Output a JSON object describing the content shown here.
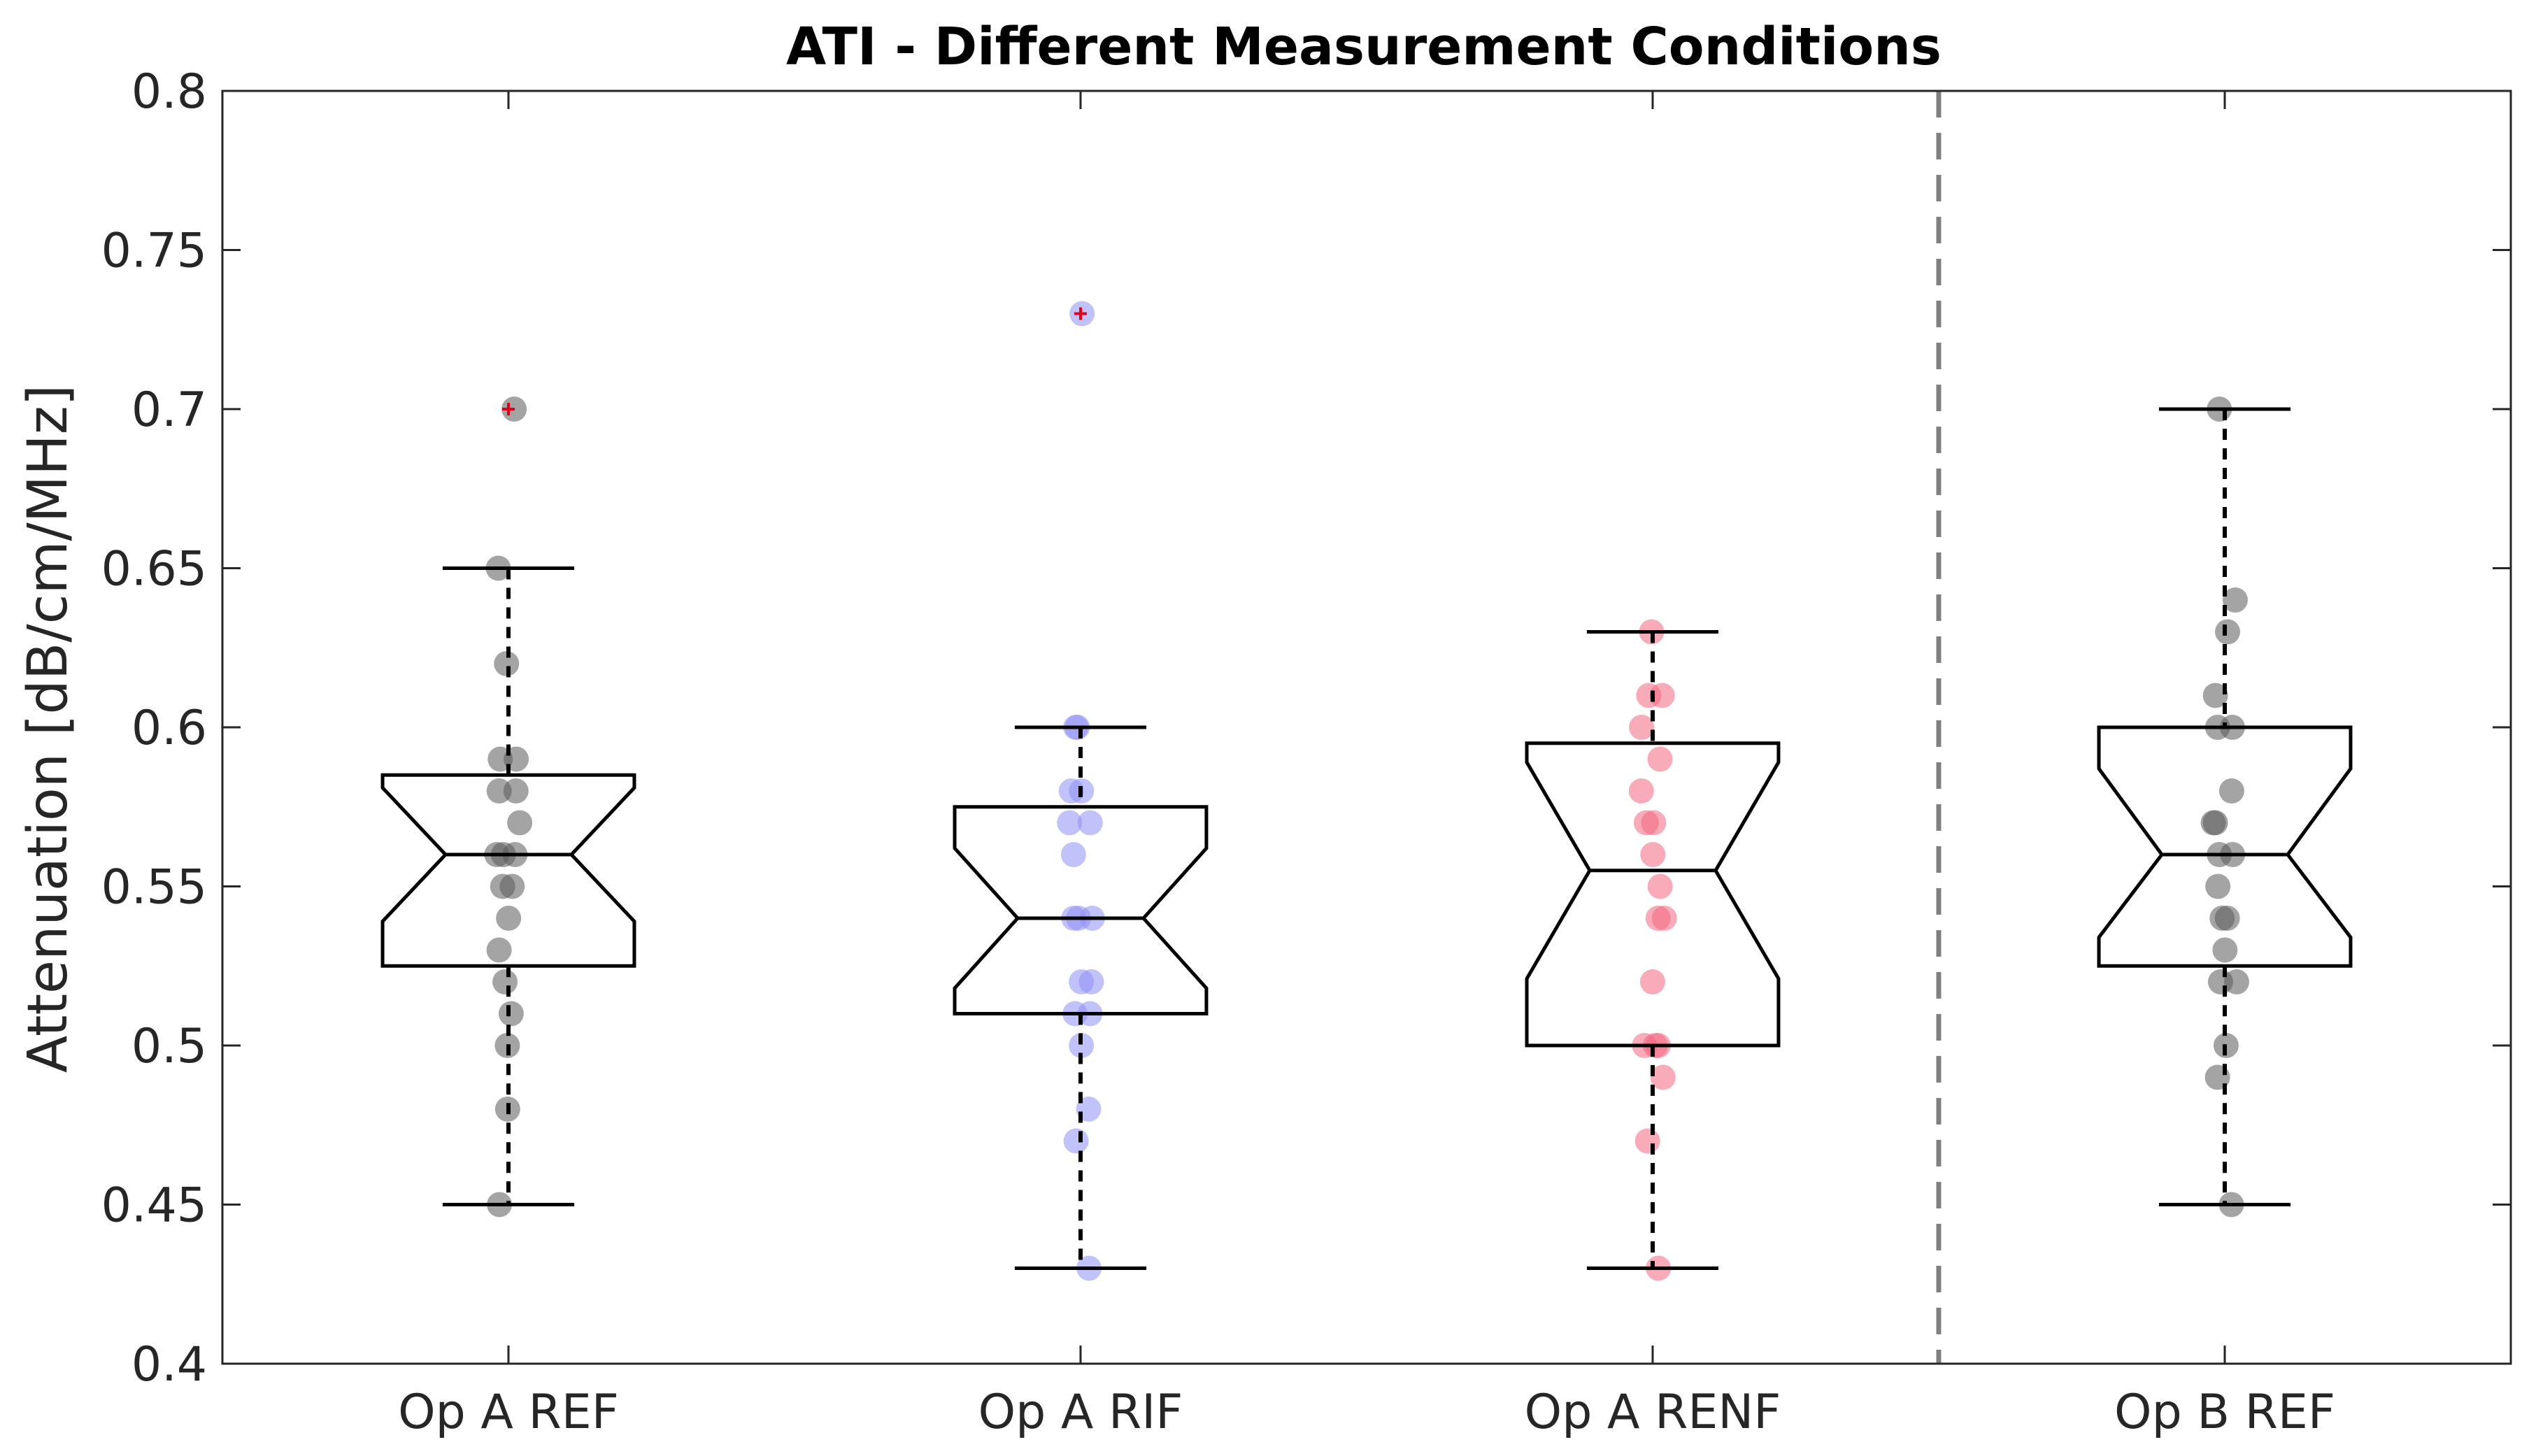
{
  "chart_data": {
    "type": "boxplot",
    "title": "ATI - Different Measurement Conditions",
    "xlabel": "",
    "ylabel": "Attenuation [dB/cm/MHz]",
    "ylim": [
      0.4,
      0.8
    ],
    "yticks": [
      0.4,
      0.45,
      0.5,
      0.55,
      0.6,
      0.65,
      0.7,
      0.75,
      0.8
    ],
    "ytick_labels": [
      "0.4",
      "0.45",
      "0.5",
      "0.55",
      "0.6",
      "0.65",
      "0.7",
      "0.75",
      "0.8"
    ],
    "separator_after_group": 3,
    "groups": [
      {
        "name": "Op A REF",
        "color": "#595959",
        "median": 0.56,
        "q1": 0.525,
        "q3": 0.585,
        "notch_low": 0.539,
        "notch_high": 0.581,
        "whisker_low": 0.45,
        "whisker_high": 0.65,
        "outliers": [
          0.7
        ],
        "points": [
          0.7,
          0.65,
          0.62,
          0.59,
          0.59,
          0.58,
          0.58,
          0.57,
          0.56,
          0.56,
          0.56,
          0.55,
          0.55,
          0.54,
          0.53,
          0.52,
          0.51,
          0.5,
          0.48,
          0.45
        ]
      },
      {
        "name": "Op A RIF",
        "color": "#8f8ff5",
        "median": 0.54,
        "q1": 0.51,
        "q3": 0.575,
        "notch_low": 0.518,
        "notch_high": 0.562,
        "whisker_low": 0.43,
        "whisker_high": 0.6,
        "outliers": [
          0.73
        ],
        "points": [
          0.73,
          0.6,
          0.6,
          0.58,
          0.58,
          0.57,
          0.57,
          0.56,
          0.54,
          0.54,
          0.54,
          0.52,
          0.52,
          0.51,
          0.51,
          0.5,
          0.48,
          0.47,
          0.43
        ]
      },
      {
        "name": "Op A RENF",
        "color": "#f26680",
        "median": 0.555,
        "q1": 0.5,
        "q3": 0.595,
        "notch_low": 0.521,
        "notch_high": 0.589,
        "whisker_low": 0.43,
        "whisker_high": 0.63,
        "outliers": [],
        "points": [
          0.63,
          0.61,
          0.61,
          0.6,
          0.59,
          0.58,
          0.57,
          0.57,
          0.56,
          0.55,
          0.54,
          0.54,
          0.52,
          0.5,
          0.5,
          0.5,
          0.49,
          0.47,
          0.43
        ]
      },
      {
        "name": "Op B REF",
        "color": "#595959",
        "median": 0.56,
        "q1": 0.525,
        "q3": 0.6,
        "notch_low": 0.534,
        "notch_high": 0.587,
        "whisker_low": 0.45,
        "whisker_high": 0.7,
        "outliers": [],
        "points": [
          0.7,
          0.64,
          0.63,
          0.61,
          0.6,
          0.6,
          0.58,
          0.57,
          0.57,
          0.56,
          0.56,
          0.55,
          0.54,
          0.54,
          0.53,
          0.52,
          0.52,
          0.5,
          0.49,
          0.45
        ]
      }
    ]
  }
}
